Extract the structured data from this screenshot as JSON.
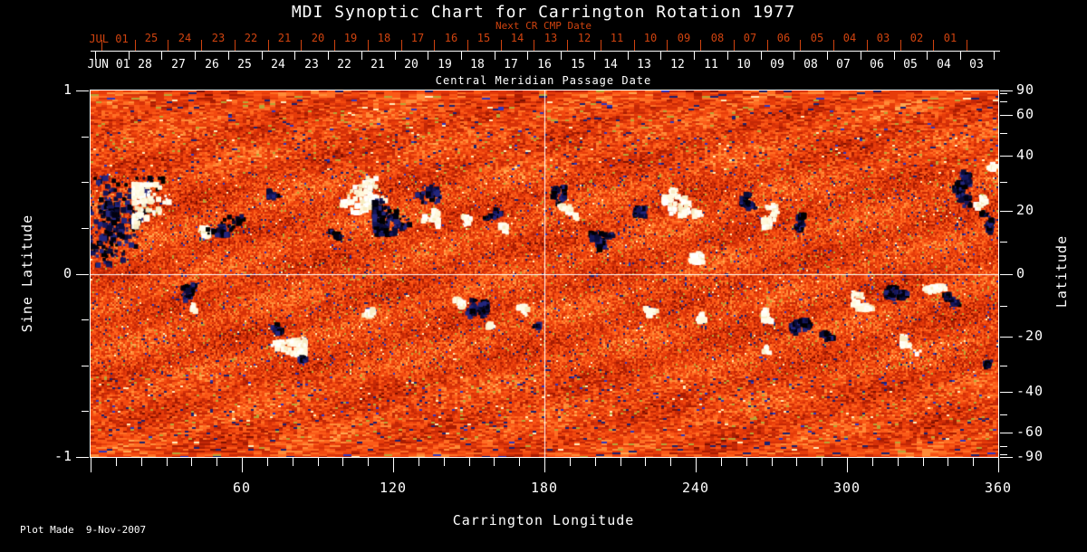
{
  "chart_data": {
    "type": "heatmap",
    "title": "MDI Synoptic Chart for Carrington Rotation 1977",
    "xlabel": "Carrington Longitude",
    "ylabel_left": "Sine Latitude",
    "ylabel_right": "Latitude",
    "x_range": [
      0,
      360
    ],
    "y_range_sine": [
      -1,
      1
    ],
    "x_major_ticks": [
      60,
      120,
      180,
      240,
      300,
      360
    ],
    "x_minor_tick_step": 10,
    "left_ticks_sine_labeled": [
      1,
      0,
      -1
    ],
    "left_ticks_sine_minor": [
      0.75,
      0.5,
      0.25,
      -0.25,
      -0.5,
      -0.75
    ],
    "right_ticks_latitude_labeled": [
      90,
      60,
      40,
      20,
      0,
      -20,
      -40,
      -60,
      -90
    ],
    "right_tick_latitude_step": 10,
    "top_axis_next_cr": {
      "label": "Next CR CMP Date",
      "month_label": "JUL 01",
      "days": [
        "25",
        "24",
        "23",
        "22",
        "21",
        "20",
        "19",
        "18",
        "17",
        "16",
        "15",
        "14",
        "13",
        "12",
        "11",
        "10",
        "09",
        "08",
        "07",
        "06",
        "05",
        "04",
        "03",
        "02",
        "01"
      ]
    },
    "cmp_axis": {
      "title": "Central Meridian Passage Date",
      "month_label": "JUN 01",
      "days": [
        "28",
        "27",
        "26",
        "25",
        "24",
        "23",
        "22",
        "21",
        "20",
        "19",
        "18",
        "17",
        "16",
        "15",
        "14",
        "13",
        "12",
        "11",
        "10",
        "09",
        "08",
        "07",
        "06",
        "05",
        "04",
        "03"
      ]
    },
    "crosshair": {
      "longitude": 180,
      "sine_latitude": 0
    },
    "colors": {
      "background": "#000000",
      "axis_text": "#ffffff",
      "next_cr_red": "#d0430f",
      "magnetogram_palette": [
        "#7e1000",
        "#a81c02",
        "#c42806",
        "#d63108",
        "#e63c0a",
        "#f34a10",
        "#fb5a18",
        "#ff6f24",
        "#ff8c38",
        "#ffa851"
      ],
      "speckle_navy": "#1c2070",
      "speckle_blue": "#2f36c0",
      "speckle_olive": "#b7a637",
      "speckle_cream": "#ffedbb",
      "negative_region": [
        "#01010f",
        "#0a0c38",
        "#15175c",
        "#000000",
        "#23267e"
      ],
      "positive_region": [
        "#fffef2",
        "#fff8dc",
        "#ffffff",
        "#f7ecc3",
        "#fffce8"
      ]
    },
    "colormap_description": "orange-red solar magnetogram noise; white/cream = positive polarity active regions, dark navy/black = negative polarity",
    "regions": [
      [
        0.035,
        0.358,
        45,
        48,
        "d",
        260
      ],
      [
        0.072,
        0.341,
        24,
        34,
        "w",
        130
      ],
      [
        0.015,
        0.3,
        14,
        16,
        "d",
        40
      ],
      [
        0.13,
        0.4,
        12,
        12,
        "w",
        45
      ],
      [
        0.15,
        0.333,
        22,
        25,
        "d",
        50
      ],
      [
        0.21,
        0.29,
        14,
        10,
        "d",
        25
      ],
      [
        0.264,
        0.383,
        10,
        9,
        "d",
        25
      ],
      [
        0.299,
        0.284,
        26,
        20,
        "w",
        120
      ],
      [
        0.339,
        0.333,
        26,
        24,
        "d",
        140
      ],
      [
        0.369,
        0.358,
        14,
        12,
        "w",
        45
      ],
      [
        0.379,
        0.272,
        20,
        14,
        "d",
        35
      ],
      [
        0.409,
        0.365,
        10,
        8,
        "w",
        28
      ],
      [
        0.444,
        0.326,
        10,
        10,
        "d",
        32
      ],
      [
        0.457,
        0.385,
        8,
        7,
        "w",
        20
      ],
      [
        0.511,
        0.291,
        12,
        12,
        "d",
        48
      ],
      [
        0.524,
        0.326,
        12,
        10,
        "w",
        42
      ],
      [
        0.564,
        0.425,
        16,
        14,
        "d",
        65
      ],
      [
        0.654,
        0.316,
        22,
        18,
        "w",
        95
      ],
      [
        0.614,
        0.351,
        14,
        12,
        "d",
        48
      ],
      [
        0.664,
        0.464,
        16,
        10,
        "w",
        32
      ],
      [
        0.731,
        0.316,
        14,
        13,
        "d",
        52
      ],
      [
        0.75,
        0.346,
        16,
        14,
        "w",
        65
      ],
      [
        0.783,
        0.365,
        12,
        10,
        "d",
        38
      ],
      [
        0.951,
        0.277,
        18,
        22,
        "d",
        85
      ],
      [
        0.975,
        0.316,
        12,
        12,
        "w",
        42
      ],
      [
        0.99,
        0.37,
        10,
        16,
        "d",
        42
      ],
      [
        0.988,
        0.21,
        10,
        8,
        "w",
        20
      ],
      [
        0.108,
        0.548,
        12,
        12,
        "d",
        48
      ],
      [
        0.115,
        0.588,
        7,
        6,
        "w",
        16
      ],
      [
        0.218,
        0.686,
        18,
        16,
        "w",
        95
      ],
      [
        0.202,
        0.647,
        10,
        9,
        "d",
        32
      ],
      [
        0.235,
        0.736,
        10,
        7,
        "d",
        22
      ],
      [
        0.307,
        0.617,
        10,
        8,
        "w",
        28
      ],
      [
        0.419,
        0.612,
        18,
        16,
        "d",
        75
      ],
      [
        0.404,
        0.573,
        10,
        8,
        "w",
        28
      ],
      [
        0.447,
        0.642,
        9,
        8,
        "w",
        22
      ],
      [
        0.481,
        0.612,
        10,
        9,
        "w",
        32
      ],
      [
        0.495,
        0.642,
        7,
        6,
        "d",
        16
      ],
      [
        0.617,
        0.593,
        12,
        9,
        "w",
        38
      ],
      [
        0.674,
        0.622,
        10,
        8,
        "w",
        28
      ],
      [
        0.753,
        0.622,
        12,
        10,
        "w",
        48
      ],
      [
        0.776,
        0.662,
        16,
        14,
        "d",
        65
      ],
      [
        0.743,
        0.696,
        9,
        8,
        "w",
        22
      ],
      [
        0.85,
        0.568,
        16,
        12,
        "w",
        75
      ],
      [
        0.886,
        0.573,
        14,
        14,
        "d",
        65
      ],
      [
        0.928,
        0.558,
        14,
        10,
        "w",
        55
      ],
      [
        0.953,
        0.58,
        12,
        10,
        "d",
        42
      ],
      [
        0.81,
        0.672,
        12,
        10,
        "d",
        38
      ],
      [
        0.918,
        0.704,
        24,
        14,
        "w",
        30
      ],
      [
        0.986,
        0.736,
        8,
        8,
        "d",
        22
      ]
    ]
  },
  "footer": {
    "plot_made": "Plot Made  9-Nov-2007"
  }
}
